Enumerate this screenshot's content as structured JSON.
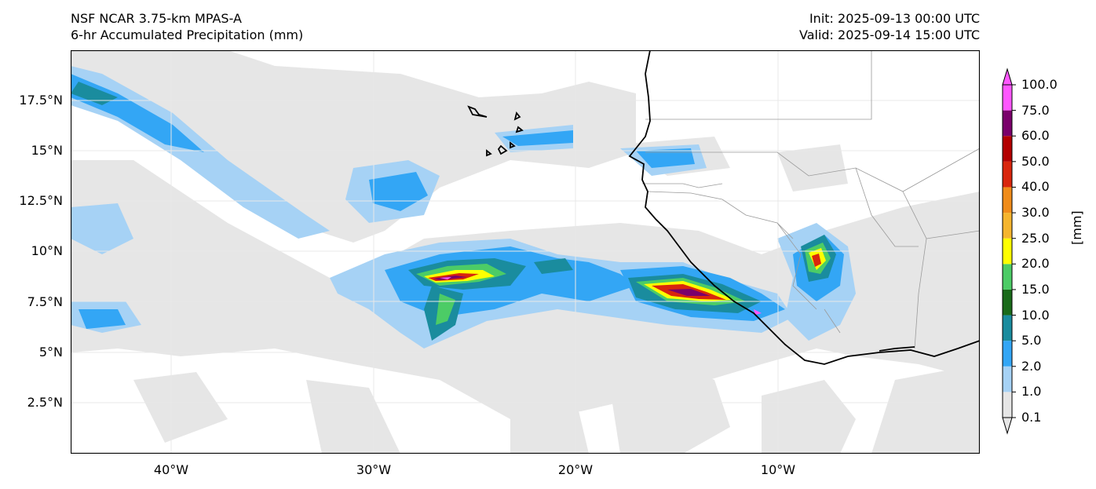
{
  "header": {
    "model": "NSF NCAR 3.75-km MPAS-A",
    "field": "6-hr Accumulated Precipitation (mm)",
    "init": "Init: 2025-09-13 00:00 UTC",
    "valid": "Valid: 2025-09-14 15:00 UTC"
  },
  "map": {
    "lat_ticks": [
      "17.5°N",
      "15°N",
      "12.5°N",
      "10°N",
      "7.5°N",
      "5°N",
      "2.5°N"
    ],
    "lon_ticks": [
      "40°W",
      "30°W",
      "20°W",
      "10°W"
    ],
    "ocean_color": "#ffffff",
    "coastline_color": "#000000",
    "border_color": "#9a9a9a"
  },
  "colorbar": {
    "unit": "[mm]",
    "levels": [
      "0.1",
      "1.0",
      "2.0",
      "5.0",
      "10.0",
      "15.0",
      "20.0",
      "25.0",
      "30.0",
      "40.0",
      "50.0",
      "60.0",
      "75.0",
      "100.0"
    ],
    "colors": [
      "#e6e6e6",
      "#a6d2f5",
      "#33a6f5",
      "#1a8c9e",
      "#1a6b1a",
      "#4ccc66",
      "#ffff00",
      "#f5b52e",
      "#f08c1a",
      "#d9260d",
      "#b30000",
      "#7a006b",
      "#ff57ff"
    ]
  }
}
